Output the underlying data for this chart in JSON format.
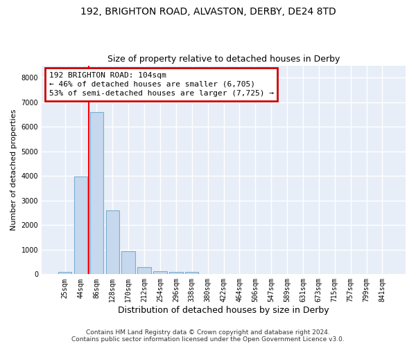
{
  "title": "192, BRIGHTON ROAD, ALVASTON, DERBY, DE24 8TD",
  "subtitle": "Size of property relative to detached houses in Derby",
  "xlabel": "Distribution of detached houses by size in Derby",
  "ylabel": "Number of detached properties",
  "bar_color": "#c5d8ed",
  "bar_edge_color": "#7aadd4",
  "background_color": "#e8eef8",
  "grid_color": "#ffffff",
  "categories": [
    "25sqm",
    "44sqm",
    "86sqm",
    "128sqm",
    "170sqm",
    "212sqm",
    "254sqm",
    "296sqm",
    "338sqm",
    "380sqm",
    "422sqm",
    "464sqm",
    "506sqm",
    "547sqm",
    "589sqm",
    "631sqm",
    "673sqm",
    "715sqm",
    "757sqm",
    "799sqm",
    "841sqm"
  ],
  "values": [
    80,
    3980,
    6600,
    2600,
    950,
    300,
    130,
    100,
    80,
    0,
    0,
    0,
    0,
    0,
    0,
    0,
    0,
    0,
    0,
    0,
    0
  ],
  "ylim": [
    0,
    8500
  ],
  "yticks": [
    0,
    1000,
    2000,
    3000,
    4000,
    5000,
    6000,
    7000,
    8000
  ],
  "red_line_x": 1.5,
  "annotation_text": "192 BRIGHTON ROAD: 104sqm\n← 46% of detached houses are smaller (6,705)\n53% of semi-detached houses are larger (7,725) →",
  "annotation_box_color": "#cc0000",
  "footer": "Contains HM Land Registry data © Crown copyright and database right 2024.\nContains public sector information licensed under the Open Government Licence v3.0.",
  "title_fontsize": 10,
  "subtitle_fontsize": 9,
  "xlabel_fontsize": 9,
  "ylabel_fontsize": 8,
  "tick_fontsize": 7,
  "annotation_fontsize": 8,
  "footer_fontsize": 6.5
}
